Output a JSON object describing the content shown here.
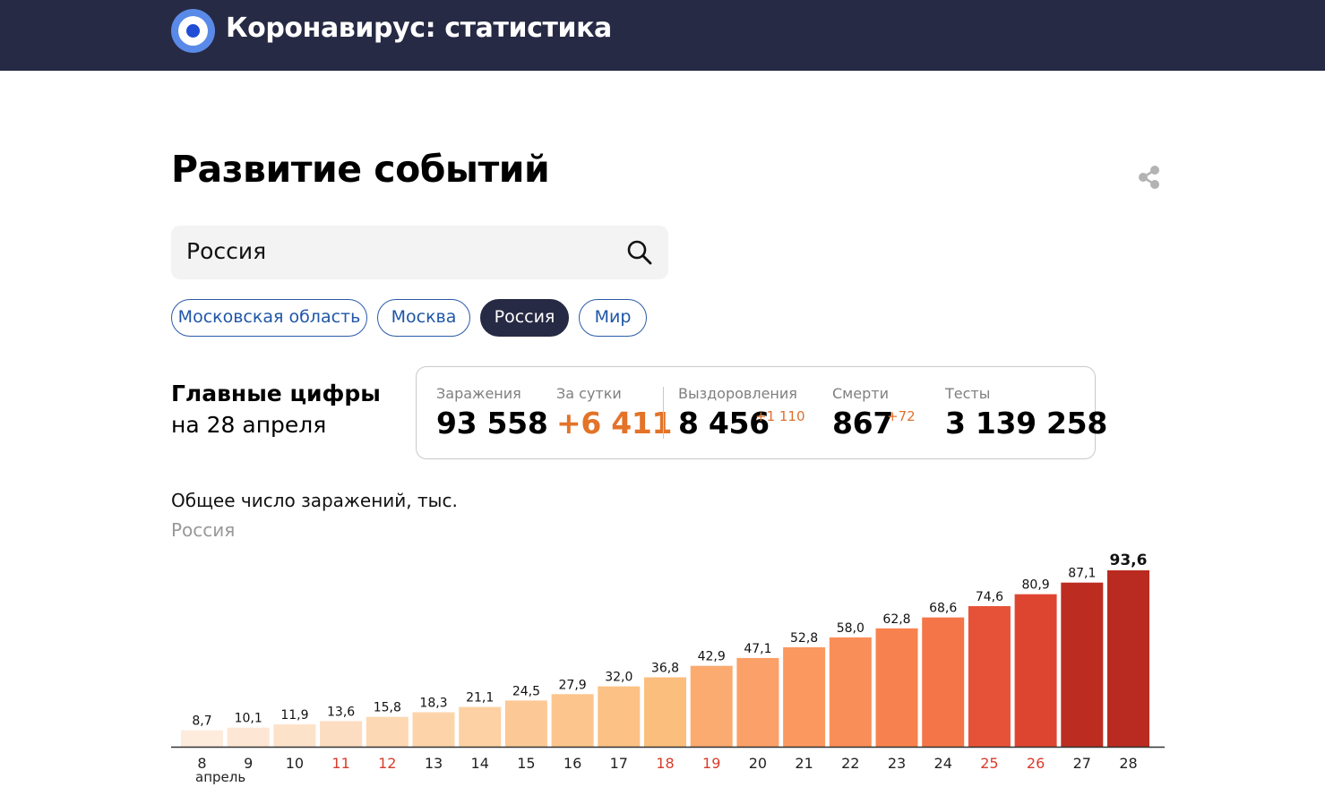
{
  "header": {
    "title": "Коронавирус: статистика"
  },
  "page": {
    "title": "Развитие событий"
  },
  "search": {
    "value": "Россия"
  },
  "chips": [
    "Московская область",
    "Москва",
    "Россия",
    "Мир"
  ],
  "active_chip": "Россия",
  "main_figures": {
    "title": "Главные цифры",
    "date": "на 28 апреля",
    "infections": {
      "label": "Заражения",
      "value": "93 558"
    },
    "per_day": {
      "label": "За сутки",
      "value": "+6 411"
    },
    "recoveries": {
      "label": "Выздоровления",
      "value": "8 456",
      "delta": "+1 110"
    },
    "deaths": {
      "label": "Смерти",
      "value": "867",
      "delta": "+72"
    },
    "tests": {
      "label": "Тесты",
      "value": "3 139 258"
    }
  },
  "colors": {
    "header_bg": "#272a44",
    "accent_orange": "#e37328",
    "chip_blue": "#1f56a8",
    "weekend_label": "#d93c2b"
  },
  "chart_data": {
    "type": "bar",
    "title": "Общее число заражений, тыс.",
    "subtitle": "Россия",
    "categories": [
      "8",
      "9",
      "10",
      "11",
      "12",
      "13",
      "14",
      "15",
      "16",
      "17",
      "18",
      "19",
      "20",
      "21",
      "22",
      "23",
      "24",
      "25",
      "26",
      "27",
      "28"
    ],
    "month_label": "апрель",
    "values": [
      8.7,
      10.1,
      11.9,
      13.6,
      15.8,
      18.3,
      21.1,
      24.5,
      27.9,
      32.0,
      36.8,
      42.9,
      47.1,
      52.8,
      58.0,
      62.8,
      68.6,
      74.6,
      80.9,
      87.1,
      93.6
    ],
    "value_labels": [
      "8,7",
      "10,1",
      "11,9",
      "13,6",
      "15,8",
      "18,3",
      "21,1",
      "24,5",
      "27,9",
      "32,0",
      "36,8",
      "42,9",
      "47,1",
      "52,8",
      "58,0",
      "62,8",
      "68,6",
      "74,6",
      "80,9",
      "87,1",
      "93,6"
    ],
    "weekend_categories": [
      "11",
      "12",
      "18",
      "19",
      "25",
      "26"
    ],
    "ylim": [
      0,
      93.6
    ],
    "bar_colors": [
      "#fdebdc",
      "#fde6d3",
      "#fde2ca",
      "#fdddc1",
      "#fdd8b4",
      "#fdd4aa",
      "#fdd1a3",
      "#fcc996",
      "#fcc58d",
      "#fcc184",
      "#fbbe7c",
      "#fbaa70",
      "#fba068",
      "#fb9860",
      "#fa8e58",
      "#f8824f",
      "#f47648",
      "#e65238",
      "#de4531",
      "#bd2c21",
      "#b92b20"
    ]
  }
}
